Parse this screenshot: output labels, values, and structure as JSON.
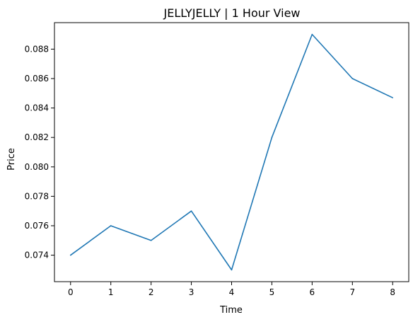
{
  "chart_data": {
    "type": "line",
    "title": "JELLYJELLY | 1 Hour View",
    "xlabel": "Time",
    "ylabel": "Price",
    "x": [
      0,
      1,
      2,
      3,
      4,
      5,
      6,
      7,
      8
    ],
    "series": [
      {
        "values": [
          0.074,
          0.076,
          0.075,
          0.077,
          0.073,
          0.082,
          0.089,
          0.086,
          0.0847
        ]
      }
    ],
    "xlim": [
      -0.4,
      8.4
    ],
    "ylim": [
      0.0722,
      0.0898
    ],
    "x_ticks": [
      "0",
      "1",
      "2",
      "3",
      "4",
      "5",
      "6",
      "7",
      "8"
    ],
    "y_ticks": [
      "0.074",
      "0.076",
      "0.078",
      "0.080",
      "0.082",
      "0.084",
      "0.086",
      "0.088"
    ],
    "line_color": "#1f77b4",
    "grid": false,
    "legend": "none"
  }
}
